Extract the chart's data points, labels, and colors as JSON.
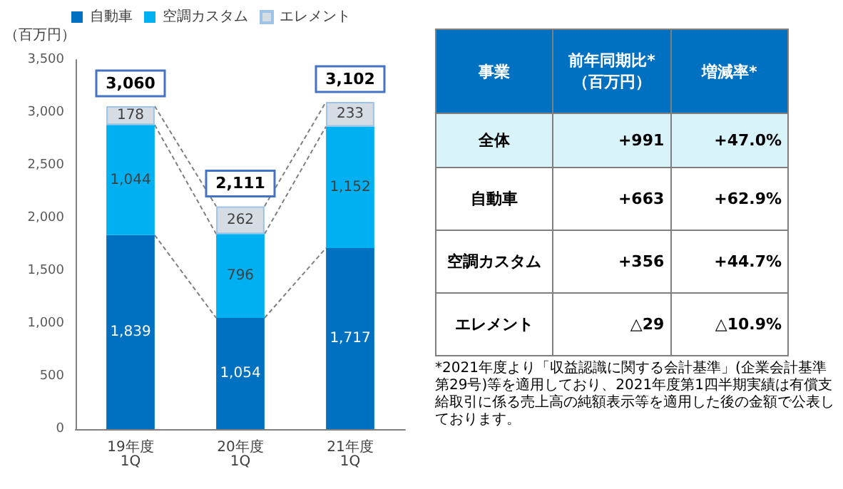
{
  "chart_data": [
    {
      "type": "bar",
      "stacked": true,
      "ylabel": "（百万円）",
      "categories": [
        "19年度\n1Q",
        "20年度\n1Q",
        "21年度\n1Q"
      ],
      "series": [
        {
          "name": "自動車",
          "color": "#0070c0",
          "values": [
            1839,
            1054,
            1717
          ],
          "value_labels": [
            "1,839",
            "1,054",
            "1,717"
          ]
        },
        {
          "name": "空調カスタム",
          "color": "#00b0f0",
          "values": [
            1044,
            796,
            1152
          ],
          "value_labels": [
            "1,044",
            "796",
            "1,152"
          ]
        },
        {
          "name": "エレメント",
          "color": "#d6dce4",
          "values": [
            178,
            262,
            233
          ],
          "value_labels": [
            "178",
            "262",
            "233"
          ]
        }
      ],
      "totals": [
        "3,060",
        "2,111",
        "3,102"
      ],
      "ylim": [
        0,
        3500
      ],
      "yticks": [
        0,
        500,
        {
          "value": 1000,
          "label": "1,000"
        },
        {
          "value": 1500,
          "label": "1,500"
        },
        {
          "value": 2000,
          "label": "2,000"
        },
        {
          "value": 2500,
          "label": "2,500"
        },
        {
          "value": 3000,
          "label": "3,000"
        },
        {
          "value": 3500,
          "label": "3,500"
        }
      ],
      "legend": "top",
      "grid": false
    },
    {
      "type": "other",
      "xlabel": "事業",
      "categories": [
        "前年同期比*\n（百万円）",
        "増減率*"
      ],
      "y_categories": [
        "全体",
        "自動車",
        "空調カスタム",
        "エレメント"
      ],
      "cell_labels": [
        [
          "+991",
          "+47.0%"
        ],
        [
          "+663",
          "+62.9%"
        ],
        [
          "+356",
          "+44.7%"
        ],
        [
          "△29",
          "△10.9%"
        ]
      ],
      "annotations": [
        "*2021年度より「収益認識に関する会計基準」(企業会計基準第29号)等を適用しており、2021年度第1四半期実績は有償支給取引に係る売上高の純額表示等を適用した後の金額で公表しております。"
      ]
    }
  ]
}
